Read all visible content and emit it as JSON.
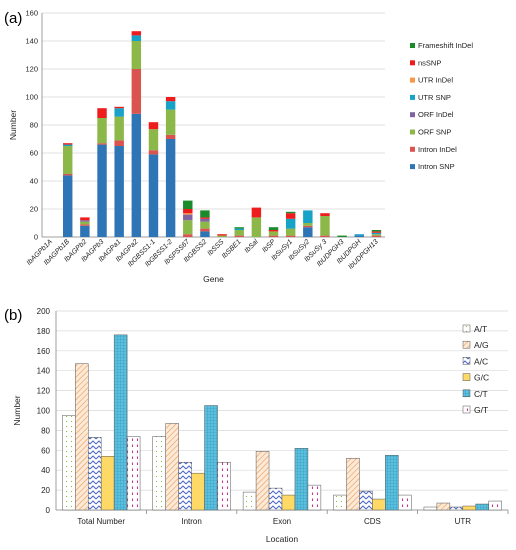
{
  "panels": {
    "a_label": "(a)",
    "b_label": "(b)"
  },
  "chart_data": [
    {
      "type": "bar",
      "stacked": true,
      "ylabel": "Number",
      "xlabel": "Gene",
      "ylim": [
        0,
        160
      ],
      "yticks": [
        0,
        20,
        40,
        60,
        80,
        100,
        120,
        140,
        160
      ],
      "grid": true,
      "legend_position": "right",
      "categories": [
        "IbAGPb1A",
        "IbAGPb1B",
        "IbAGPb2",
        "IbAGPb3",
        "IbAGPa1",
        "IbAGPa2",
        "IbGBSS1-1",
        "IbGBSS1-2",
        "IbSPSS67",
        "IbGBSS2",
        "IbSSS",
        "IbSBE1",
        "IbSal",
        "IbSP",
        "IbSuSy1",
        "IbSuSy2",
        "IbSuSy 3",
        "IbUDPGH3",
        "IbUDPGH",
        "IbUDPGH13"
      ],
      "series": [
        {
          "name": "Intron SNP",
          "color": "#2e75b6",
          "values": [
            0,
            44,
            8,
            66,
            65,
            88,
            59,
            70,
            0,
            4,
            0,
            0,
            0,
            0,
            0,
            7,
            0,
            0,
            1,
            0
          ]
        },
        {
          "name": "Intron InDel",
          "color": "#d9534f",
          "values": [
            0,
            1,
            1,
            1,
            4,
            32,
            3,
            3,
            2,
            2,
            0,
            1,
            0,
            1,
            1,
            1,
            1,
            0,
            0,
            1
          ]
        },
        {
          "name": "ORF SNP",
          "color": "#8cb84a",
          "values": [
            0,
            20,
            2,
            18,
            17,
            20,
            15,
            18,
            10,
            5,
            1,
            4,
            14,
            3,
            5,
            2,
            14,
            0,
            0,
            1
          ]
        },
        {
          "name": "ORF InDel",
          "color": "#8064a2",
          "values": [
            0,
            0,
            1,
            0,
            0,
            0,
            0,
            0,
            4,
            2,
            0,
            0,
            0,
            0,
            0,
            0,
            0,
            0,
            0,
            0
          ]
        },
        {
          "name": "UTR SNP",
          "color": "#17a2c8",
          "values": [
            0,
            1,
            0,
            0,
            6,
            4,
            0,
            6,
            0,
            0,
            0,
            1,
            0,
            0,
            7,
            9,
            0,
            0,
            1,
            1
          ]
        },
        {
          "name": "UTR InDel",
          "color": "#f79646",
          "values": [
            0,
            0,
            0,
            0,
            0,
            0,
            0,
            0,
            1,
            0,
            0,
            0,
            0,
            0,
            0,
            0,
            0,
            0,
            0,
            0
          ]
        },
        {
          "name": "nsSNP",
          "color": "#ee1c1c",
          "values": [
            0,
            1,
            2,
            7,
            1,
            3,
            5,
            3,
            3,
            1,
            1,
            0,
            7,
            1,
            4,
            0,
            2,
            0,
            0,
            1
          ]
        },
        {
          "name": "Frameshift InDel",
          "color": "#1a8a2a",
          "values": [
            0,
            0,
            0,
            0,
            0,
            0,
            0,
            0,
            6,
            5,
            0,
            1,
            0,
            2,
            1,
            0,
            0,
            1,
            0,
            1
          ]
        }
      ]
    },
    {
      "type": "bar",
      "stacked": false,
      "ylabel": "Number",
      "xlabel": "Location",
      "ylim": [
        0,
        200
      ],
      "yticks": [
        0,
        20,
        40,
        60,
        80,
        100,
        120,
        140,
        160,
        180,
        200
      ],
      "grid": true,
      "legend_position": "right",
      "categories": [
        "Total Number",
        "Intron",
        "Exon",
        "CDS",
        "UTR"
      ],
      "series": [
        {
          "name": "A/T",
          "color": "#ffffff",
          "pattern": "dots",
          "values": [
            95,
            74,
            18,
            15,
            3
          ]
        },
        {
          "name": "A/G",
          "color": "#fbe3cc",
          "pattern": "diag",
          "values": [
            147,
            87,
            59,
            52,
            7
          ]
        },
        {
          "name": "A/C",
          "color": "#ffffff",
          "pattern": "zigzag",
          "values": [
            73,
            48,
            22,
            19,
            3
          ]
        },
        {
          "name": "G/C",
          "color": "#ffd966",
          "pattern": "solid",
          "values": [
            54,
            37,
            15,
            11,
            4
          ]
        },
        {
          "name": "C/T",
          "color": "#5bc0de",
          "pattern": "grid",
          "values": [
            176,
            105,
            62,
            55,
            6
          ]
        },
        {
          "name": "G/T",
          "color": "#ffffff",
          "pattern": "dashes",
          "values": [
            74,
            48,
            25,
            15,
            9
          ]
        }
      ]
    }
  ]
}
